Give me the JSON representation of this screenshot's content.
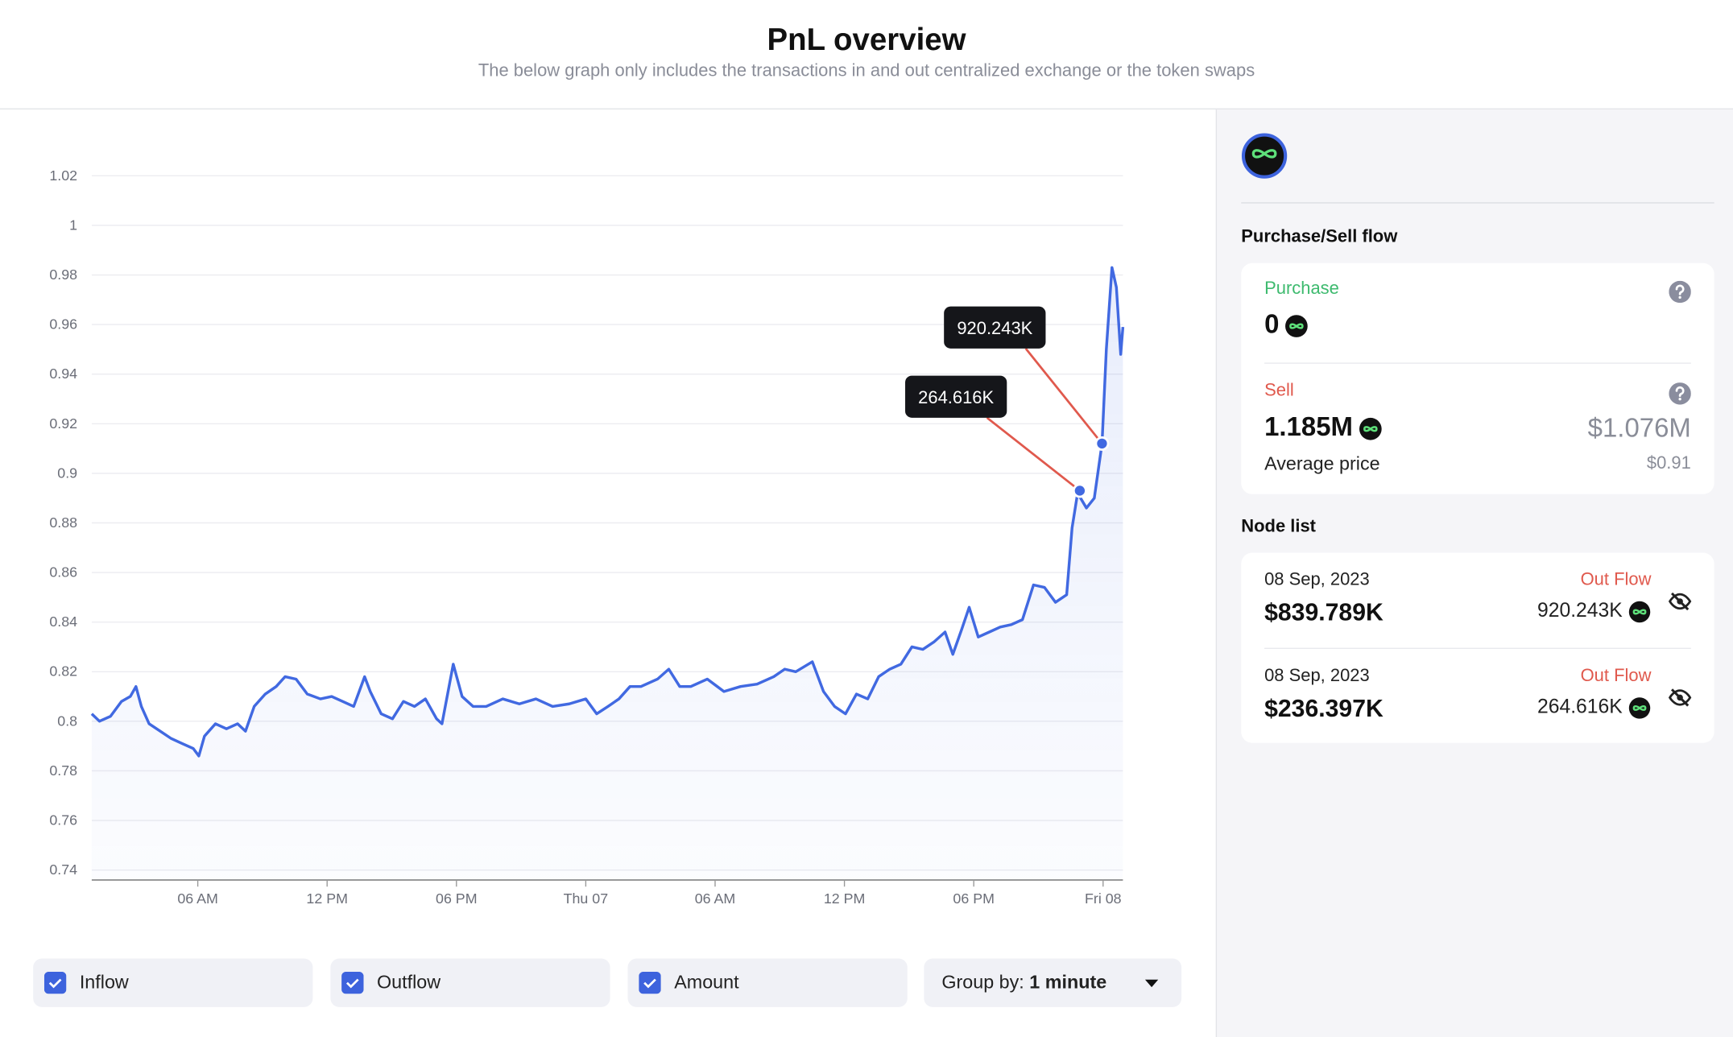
{
  "header": {
    "title": "PnL overview",
    "subtitle": "The below graph only includes the transactions in and out centralized exchange or the token swaps"
  },
  "chart_data": {
    "type": "line",
    "line_color": "#4169e1",
    "grid": true,
    "x": [
      1.08,
      1.44,
      1.95,
      2.46,
      2.87,
      3.13,
      3.38,
      3.74,
      4.26,
      4.77,
      5.28,
      5.79,
      6.05,
      6.31,
      6.82,
      7.33,
      7.85,
      8.21,
      8.62,
      9.13,
      9.64,
      10.05,
      10.56,
      11.08,
      11.69,
      12.21,
      12.72,
      13.23,
      13.74,
      14.0,
      14.51,
      15.03,
      15.54,
      16.05,
      16.56,
      17.08,
      17.33,
      17.85,
      18.26,
      18.77,
      19.38,
      20.15,
      20.92,
      21.69,
      22.46,
      23.23,
      24.0,
      24.51,
      25.03,
      25.54,
      26.05,
      26.56,
      27.33,
      27.85,
      28.36,
      28.87,
      29.64,
      30.41,
      31.18,
      31.95,
      32.72,
      33.23,
      33.74,
      34.51,
      35.03,
      35.54,
      36.05,
      36.56,
      37.08,
      37.59,
      38.1,
      38.62,
      39.13,
      39.64,
      40.15,
      40.67,
      41.03,
      41.44,
      41.79,
      42.21,
      42.72,
      43.23,
      43.74,
      44.26,
      44.77,
      45.28,
      45.79,
      46.31,
      46.56,
      46.82,
      47.23,
      47.59,
      47.95,
      48.15,
      48.41,
      48.62,
      48.82,
      48.92
    ],
    "values": [
      0.803,
      0.8,
      0.802,
      0.808,
      0.81,
      0.814,
      0.806,
      0.799,
      0.796,
      0.793,
      0.791,
      0.789,
      0.786,
      0.794,
      0.799,
      0.797,
      0.799,
      0.796,
      0.806,
      0.811,
      0.814,
      0.818,
      0.817,
      0.811,
      0.809,
      0.81,
      0.808,
      0.806,
      0.818,
      0.812,
      0.803,
      0.801,
      0.808,
      0.806,
      0.809,
      0.801,
      0.799,
      0.823,
      0.81,
      0.806,
      0.806,
      0.809,
      0.807,
      0.809,
      0.806,
      0.807,
      0.809,
      0.803,
      0.806,
      0.809,
      0.814,
      0.814,
      0.817,
      0.821,
      0.814,
      0.814,
      0.817,
      0.812,
      0.814,
      0.815,
      0.818,
      0.821,
      0.82,
      0.824,
      0.812,
      0.806,
      0.803,
      0.811,
      0.809,
      0.818,
      0.821,
      0.823,
      0.83,
      0.829,
      0.832,
      0.836,
      0.827,
      0.837,
      0.846,
      0.834,
      0.836,
      0.838,
      0.839,
      0.841,
      0.855,
      0.854,
      0.848,
      0.851,
      0.878,
      0.892,
      0.886,
      0.89,
      0.912,
      0.95,
      0.983,
      0.975,
      0.948,
      0.959
    ],
    "xlim": [
      1.08,
      48.92
    ],
    "xticks": [
      {
        "value": 6,
        "label": "06 AM"
      },
      {
        "value": 12,
        "label": "12 PM"
      },
      {
        "value": 18,
        "label": "06 PM"
      },
      {
        "value": 24,
        "label": "Thu 07"
      },
      {
        "value": 30,
        "label": "06 AM"
      },
      {
        "value": 36,
        "label": "12 PM"
      },
      {
        "value": 42,
        "label": "06 PM"
      },
      {
        "value": 48,
        "label": "Fri 08"
      }
    ],
    "ylim": [
      0.74,
      1.02
    ],
    "yticks": [
      0.74,
      0.76,
      0.78,
      0.8,
      0.82,
      0.84,
      0.86,
      0.88,
      0.9,
      0.92,
      0.94,
      0.96,
      0.98,
      1,
      1.02
    ],
    "annotations": [
      {
        "x": 46.92,
        "y": 0.893,
        "label": "264.616K"
      },
      {
        "x": 47.95,
        "y": 0.912,
        "label": "920.243K"
      }
    ]
  },
  "controls": {
    "checkboxes": [
      {
        "label": "Inflow",
        "checked": true
      },
      {
        "label": "Outflow",
        "checked": true
      },
      {
        "label": "Amount",
        "checked": true
      }
    ],
    "group_by": {
      "label": "Group by:",
      "value": "1 minute"
    }
  },
  "sidebar": {
    "flow_title": "Purchase/Sell flow",
    "purchase": {
      "label": "Purchase",
      "amount": "0"
    },
    "sell": {
      "label": "Sell",
      "amount": "1.185M",
      "usd": "$1.076M",
      "avg_label": "Average price",
      "avg_price": "$0.91"
    },
    "node_title": "Node list",
    "nodes": [
      {
        "date": "08 Sep, 2023",
        "usd": "$839.789K",
        "flow": "Out Flow",
        "amount": "920.243K"
      },
      {
        "date": "08 Sep, 2023",
        "usd": "$236.397K",
        "flow": "Out Flow",
        "amount": "264.616K"
      }
    ]
  }
}
